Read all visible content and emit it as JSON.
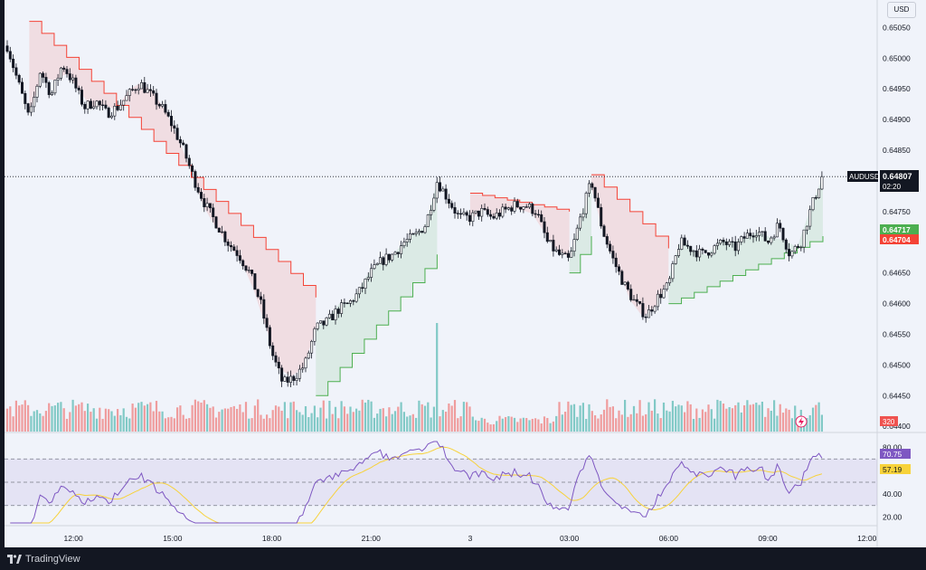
{
  "header": {
    "currency": "USD"
  },
  "footer": {
    "brand": "TradingView"
  },
  "price_axis": {
    "ticks": [
      "0.65050",
      "0.65000",
      "0.64950",
      "0.64900",
      "0.64850",
      "0.64750",
      "0.64650",
      "0.64600",
      "0.64550",
      "0.64500",
      "0.64450",
      "0.64400"
    ],
    "symbol": "AUDUSD",
    "last_price": "0.64807",
    "countdown": "02:20",
    "supertrend_up_label": "0.64717",
    "supertrend_down_label": "0.64704",
    "volume_label": "320"
  },
  "rsi_axis": {
    "ticks": [
      "80.00",
      "40.00",
      "20.00"
    ],
    "rsi_value": "70.75",
    "rsi_ma_value": "57.19"
  },
  "time_axis": {
    "labels": [
      "12:00",
      "15:00",
      "18:00",
      "21:00",
      "3",
      "03:00",
      "06:00",
      "09:00",
      "12:00"
    ]
  },
  "colors": {
    "bull": "#26a69a",
    "bear": "#ef5350",
    "candle_body": "#131722",
    "supertrend_up": "#4caf50",
    "supertrend_down": "#f44336",
    "rsi": "#7e57c2",
    "rsi_ma": "#f7d23a",
    "rsi_band": "#7e57c2"
  },
  "chart_data": {
    "type": "candlestick",
    "symbol": "AUDUSD",
    "price_ylim": [
      0.6439,
      0.6508
    ],
    "price_path": [
      [
        "10:00",
        0.6502
      ],
      [
        "10:20",
        0.6496
      ],
      [
        "10:40",
        0.649
      ],
      [
        "11:00",
        0.6498
      ],
      [
        "11:20",
        0.6494
      ],
      [
        "11:40",
        0.6499
      ],
      [
        "12:00",
        0.6496
      ],
      [
        "12:20",
        0.6492
      ],
      [
        "12:40",
        0.6493
      ],
      [
        "13:00",
        0.6491
      ],
      [
        "13:20",
        0.6492
      ],
      [
        "13:40",
        0.6494
      ],
      [
        "14:00",
        0.6496
      ],
      [
        "14:20",
        0.6494
      ],
      [
        "14:40",
        0.6492
      ],
      [
        "15:00",
        0.6489
      ],
      [
        "15:20",
        0.6485
      ],
      [
        "15:40",
        0.648
      ],
      [
        "16:00",
        0.6476
      ],
      [
        "16:20",
        0.6473
      ],
      [
        "16:40",
        0.647
      ],
      [
        "17:00",
        0.6468
      ],
      [
        "17:20",
        0.6465
      ],
      [
        "17:40",
        0.646
      ],
      [
        "18:00",
        0.6452
      ],
      [
        "18:20",
        0.6447
      ],
      [
        "18:40",
        0.6448
      ],
      [
        "19:00",
        0.645
      ],
      [
        "19:20",
        0.6456
      ],
      [
        "19:40",
        0.6457
      ],
      [
        "20:00",
        0.6459
      ],
      [
        "20:20",
        0.646
      ],
      [
        "20:40",
        0.6462
      ],
      [
        "21:00",
        0.6465
      ],
      [
        "21:20",
        0.6467
      ],
      [
        "21:40",
        0.6468
      ],
      [
        "22:00",
        0.647
      ],
      [
        "22:20",
        0.6471
      ],
      [
        "22:40",
        0.6473
      ],
      [
        "23:00",
        0.648
      ],
      [
        "23:20",
        0.6477
      ],
      [
        "23:40",
        0.6474
      ],
      [
        "00:00",
        0.6474
      ],
      [
        "00:20",
        0.6475
      ],
      [
        "00:40",
        0.6474
      ],
      [
        "01:00",
        0.6475
      ],
      [
        "01:20",
        0.6476
      ],
      [
        "01:40",
        0.6476
      ],
      [
        "02:00",
        0.6475
      ],
      [
        "02:20",
        0.647
      ],
      [
        "02:40",
        0.6468
      ],
      [
        "03:00",
        0.6467
      ],
      [
        "03:20",
        0.6474
      ],
      [
        "03:40",
        0.648
      ],
      [
        "04:00",
        0.6472
      ],
      [
        "04:20",
        0.6467
      ],
      [
        "04:40",
        0.6463
      ],
      [
        "05:00",
        0.646
      ],
      [
        "05:20",
        0.6458
      ],
      [
        "05:40",
        0.6461
      ],
      [
        "06:00",
        0.6463
      ],
      [
        "06:20",
        0.647
      ],
      [
        "06:40",
        0.6469
      ],
      [
        "07:00",
        0.6468
      ],
      [
        "07:20",
        0.6469
      ],
      [
        "07:40",
        0.647
      ],
      [
        "08:00",
        0.6469
      ],
      [
        "08:20",
        0.6471
      ],
      [
        "08:40",
        0.6472
      ],
      [
        "09:00",
        0.647
      ],
      [
        "09:20",
        0.6473
      ],
      [
        "09:40",
        0.6468
      ],
      [
        "10:00",
        0.647
      ],
      [
        "10:20",
        0.6476
      ],
      [
        "10:40",
        0.6481
      ]
    ],
    "supertrend": [
      {
        "trend": "down",
        "from": "10:40",
        "to": "19:20",
        "start": 0.6506,
        "end": 0.6461
      },
      {
        "trend": "up",
        "from": "19:20",
        "to": "23:00",
        "start": 0.6445,
        "end": 0.6468
      },
      {
        "trend": "down",
        "from": "00:00",
        "to": "03:00",
        "start": 0.6478,
        "end": 0.6475
      },
      {
        "trend": "up",
        "from": "03:00",
        "to": "03:40",
        "start": 0.6465,
        "end": 0.6471
      },
      {
        "trend": "down",
        "from": "03:40",
        "to": "06:00",
        "start": 0.6481,
        "end": 0.6469
      },
      {
        "trend": "up",
        "from": "06:00",
        "to": "10:40",
        "start": 0.646,
        "end": 0.6471
      }
    ],
    "last_price": 0.64807,
    "volume_last": 320,
    "rsi": {
      "last": 70.75,
      "ma_last": 57.19,
      "ylim": [
        15,
        85
      ],
      "upper_band": 70,
      "lower_band": 30,
      "mid": 50
    },
    "xlabels": [
      "12:00",
      "15:00",
      "18:00",
      "21:00",
      "3",
      "03:00",
      "06:00",
      "09:00",
      "12:00"
    ],
    "ylabels": [
      "0.65050",
      "0.65000",
      "0.64950",
      "0.64900",
      "0.64850",
      "0.64750",
      "0.64650",
      "0.64600",
      "0.64550",
      "0.64500",
      "0.64450",
      "0.64400"
    ],
    "grid": false
  }
}
